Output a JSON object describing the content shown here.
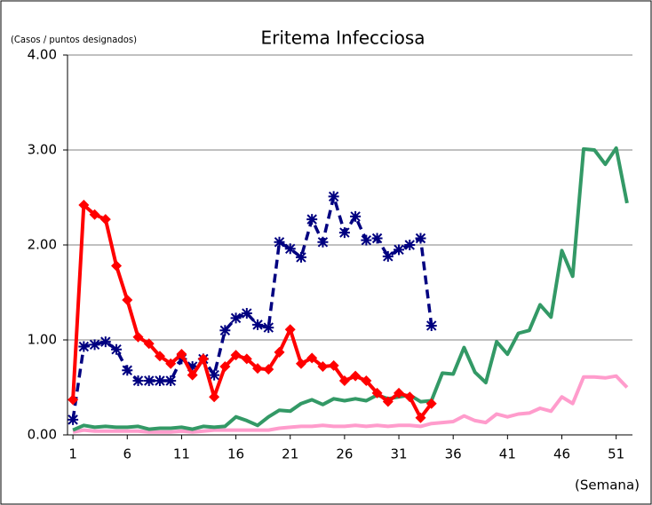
{
  "chart_data": {
    "type": "line",
    "title": "Eritema Infecciosa",
    "y_label": "(Casos / puntos designados)",
    "x_label": "(Semana)",
    "categories": [
      1,
      null,
      null,
      null,
      null,
      6,
      null,
      null,
      null,
      null,
      11,
      null,
      null,
      null,
      null,
      16,
      null,
      null,
      null,
      null,
      21,
      null,
      null,
      null,
      null,
      26,
      null,
      null,
      null,
      null,
      31,
      null,
      null,
      null,
      null,
      36,
      null,
      null,
      null,
      null,
      41,
      null,
      null,
      null,
      null,
      46,
      null,
      null,
      null,
      null,
      51,
      null
    ],
    "ylim": [
      0,
      4
    ],
    "yticks": [
      {
        "value": 0,
        "label": "0.00"
      },
      {
        "value": 1,
        "label": "1.00"
      },
      {
        "value": 2,
        "label": "2.00"
      },
      {
        "value": 3,
        "label": "3.00"
      },
      {
        "value": 4,
        "label": "4.00"
      }
    ],
    "grid": true,
    "series": [
      {
        "color": "#ff9ccc",
        "marker": "none",
        "dashed": false,
        "values": [
          0.03,
          0.05,
          0.04,
          0.04,
          0.04,
          0.04,
          0.04,
          0.03,
          0.03,
          0.03,
          0.04,
          0.03,
          0.04,
          0.05,
          0.05,
          0.05,
          0.05,
          0.05,
          0.05,
          0.07,
          0.08,
          0.09,
          0.09,
          0.1,
          0.09,
          0.09,
          0.1,
          0.09,
          0.1,
          0.09,
          0.1,
          0.1,
          0.09,
          0.12,
          0.13,
          0.14,
          0.2,
          0.15,
          0.13,
          0.22,
          0.19,
          0.22,
          0.23,
          0.28,
          0.25,
          0.4,
          0.33,
          0.61,
          0.61,
          0.6,
          0.62,
          0.5
        ]
      },
      {
        "color": "#339966",
        "marker": "none",
        "dashed": false,
        "values": [
          0.05,
          0.1,
          0.08,
          0.09,
          0.08,
          0.08,
          0.09,
          0.06,
          0.07,
          0.07,
          0.08,
          0.06,
          0.09,
          0.08,
          0.09,
          0.19,
          0.15,
          0.1,
          0.19,
          0.26,
          0.25,
          0.33,
          0.37,
          0.32,
          0.38,
          0.36,
          0.38,
          0.36,
          0.42,
          0.38,
          0.4,
          0.42,
          0.35,
          0.36,
          0.65,
          0.64,
          0.92,
          0.66,
          0.55,
          0.98,
          0.85,
          1.07,
          1.1,
          1.37,
          1.24,
          1.94,
          1.67,
          3.01,
          3.0,
          2.85,
          3.02,
          2.44
        ]
      },
      {
        "color": "#000080",
        "marker": "asterisk",
        "dashed": true,
        "values": [
          0.16,
          0.93,
          0.95,
          0.98,
          0.9,
          0.68,
          0.57,
          0.57,
          0.57,
          0.57,
          0.8,
          0.72,
          0.8,
          0.63,
          1.1,
          1.23,
          1.28,
          1.16,
          1.13,
          2.03,
          1.96,
          1.87,
          2.27,
          2.03,
          2.51,
          2.13,
          2.3,
          2.05,
          2.07,
          1.88,
          1.95,
          2.0,
          2.07,
          1.15,
          null,
          null,
          null,
          null,
          null,
          null,
          null,
          null,
          null,
          null,
          null,
          null,
          null,
          null,
          null,
          null,
          null,
          null
        ]
      },
      {
        "color": "#ff0000",
        "marker": "diamond",
        "dashed": false,
        "values": [
          0.37,
          2.42,
          2.32,
          2.27,
          1.78,
          1.42,
          1.03,
          0.96,
          0.83,
          0.75,
          0.85,
          0.63,
          0.8,
          0.4,
          0.72,
          0.84,
          0.8,
          0.7,
          0.69,
          0.87,
          1.11,
          0.75,
          0.81,
          0.72,
          0.73,
          0.57,
          0.62,
          0.57,
          0.44,
          0.35,
          0.44,
          0.4,
          0.18,
          0.33,
          null,
          null,
          null,
          null,
          null,
          null,
          null,
          null,
          null,
          null,
          null,
          null,
          null,
          null,
          null,
          null,
          null,
          null
        ]
      }
    ]
  }
}
